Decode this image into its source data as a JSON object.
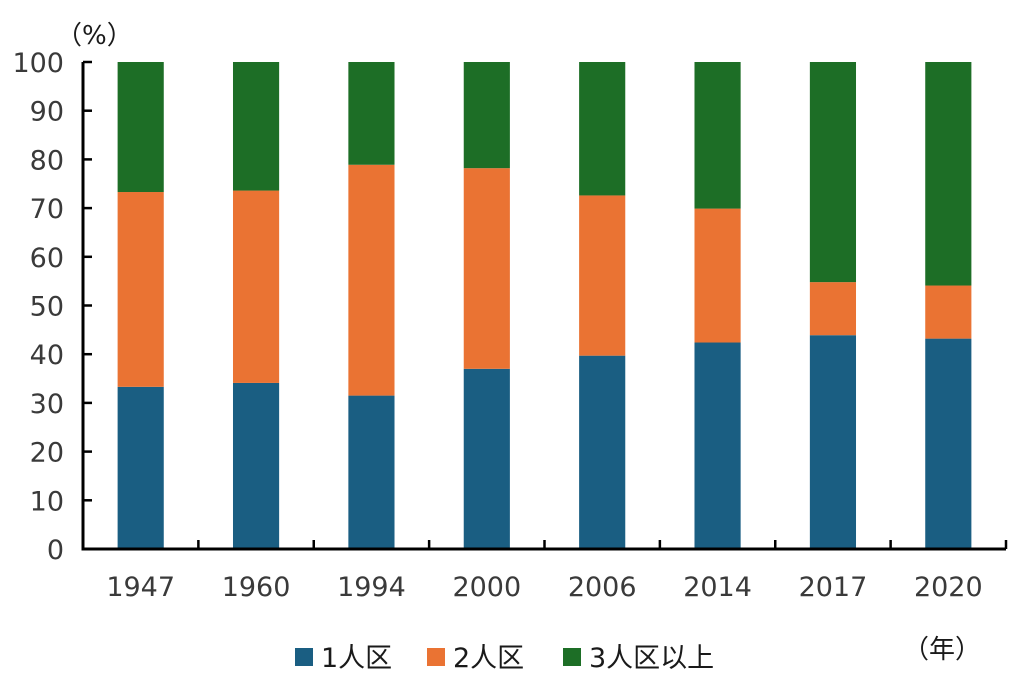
{
  "chart_data": {
    "type": "bar",
    "stacked": true,
    "categories": [
      "1947",
      "1960",
      "1994",
      "2000",
      "2006",
      "2014",
      "2017",
      "2020"
    ],
    "series": [
      {
        "name": "1人区",
        "color": "#1a5e82",
        "values": [
          33.3,
          34.1,
          31.5,
          37.0,
          39.7,
          42.4,
          43.9,
          43.2
        ]
      },
      {
        "name": "2人区",
        "color": "#ea7333",
        "values": [
          40.0,
          39.5,
          47.4,
          41.2,
          32.9,
          27.5,
          10.9,
          10.9
        ]
      },
      {
        "name": "3人区以上",
        "color": "#1d6e26",
        "values": [
          26.7,
          26.4,
          21.1,
          21.8,
          27.4,
          30.1,
          45.2,
          45.9
        ]
      }
    ],
    "ylabel": "（%）",
    "xlabel": "（年）",
    "ylim": [
      0,
      100
    ],
    "yticks": [
      0,
      10,
      20,
      30,
      40,
      50,
      60,
      70,
      80,
      90,
      100
    ],
    "grid": false,
    "legend": "bottom"
  }
}
